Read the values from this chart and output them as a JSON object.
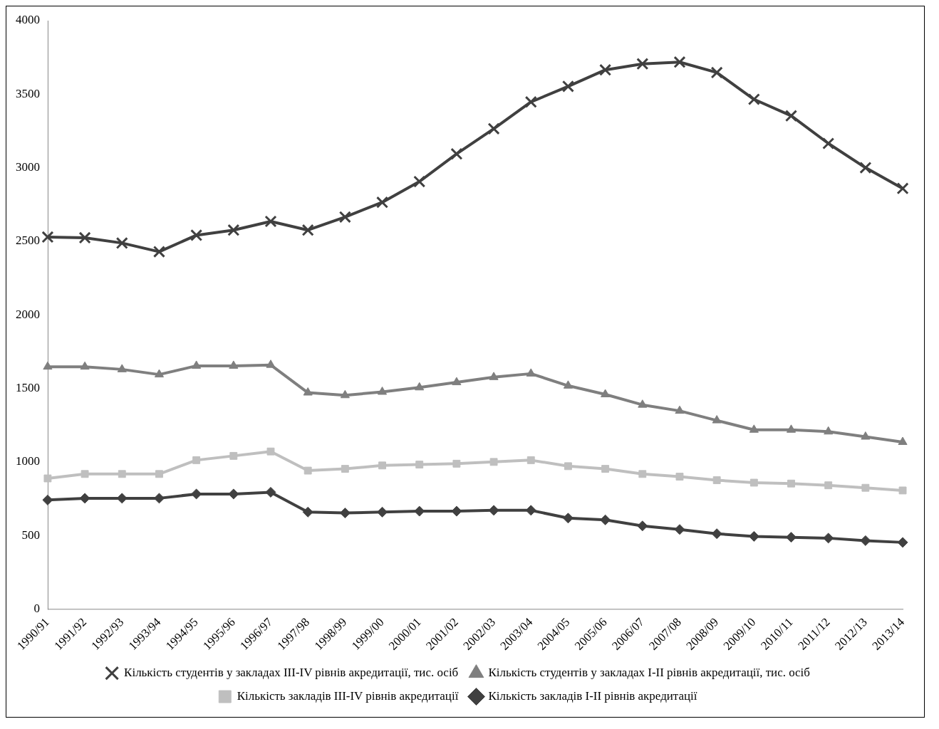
{
  "chart_data": {
    "type": "line",
    "categories": [
      "1990/91",
      "1991/92",
      "1992/93",
      "1993/94",
      "1994/95",
      "1995/96",
      "1996/97",
      "1997/98",
      "1998/99",
      "1999/00",
      "2000/01",
      "2001/02",
      "2002/03",
      "2003/04",
      "2004/05",
      "2005/06",
      "2006/07",
      "2007/08",
      "2008/09",
      "2009/10",
      "2010/11",
      "2011/12",
      "2012/13",
      "2013/14"
    ],
    "series": [
      {
        "name": "Кількість студентів у закладах ІІІ-IV рівнів акредитації, тис. осіб",
        "color": "#404040",
        "marker": "cross",
        "values": [
          2529,
          2524,
          2488,
          2429,
          2541,
          2576,
          2635,
          2576,
          2665,
          2765,
          2906,
          3094,
          3265,
          3447,
          3553,
          3665,
          3706,
          3718,
          3647,
          3465,
          3353,
          3165,
          3000,
          2859
        ]
      },
      {
        "name": "Кількість студентів у закладах І-ІІ рівнів акредитації, тис. осіб",
        "color": "#7f7f7f",
        "marker": "triangle",
        "values": [
          1647,
          1647,
          1629,
          1594,
          1653,
          1653,
          1659,
          1471,
          1453,
          1476,
          1506,
          1541,
          1576,
          1600,
          1518,
          1459,
          1388,
          1347,
          1282,
          1218,
          1218,
          1206,
          1171,
          1135
        ]
      },
      {
        "name": "Кількість закладів ІІІ-IV рівнів акредитації",
        "color": "#bfbfbf",
        "marker": "square",
        "values": [
          888,
          918,
          918,
          918,
          1012,
          1041,
          1071,
          941,
          953,
          976,
          982,
          988,
          1000,
          1012,
          971,
          953,
          918,
          900,
          876,
          859,
          853,
          841,
          824,
          806
        ]
      },
      {
        "name": "Кількість закладів І-ІІ рівнів акредитації",
        "color": "#404040",
        "marker": "diamond",
        "values": [
          741,
          753,
          753,
          753,
          782,
          782,
          794,
          659,
          653,
          659,
          665,
          665,
          671,
          671,
          618,
          606,
          565,
          541,
          512,
          494,
          488,
          482,
          465,
          453
        ]
      }
    ],
    "ylim": [
      0,
      4000
    ],
    "yticks": [
      0,
      500,
      1000,
      1500,
      2000,
      2500,
      3000,
      3500,
      4000
    ],
    "grid": false,
    "legend": "bottom"
  }
}
